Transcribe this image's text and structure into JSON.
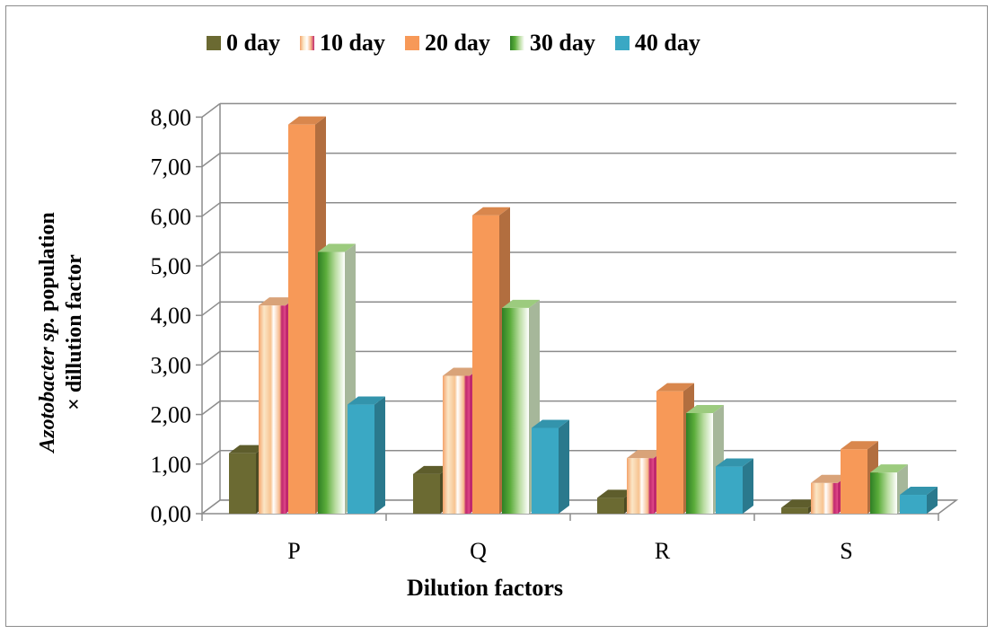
{
  "chart_data": {
    "type": "bar",
    "ylabel_line1_italic": "Azotobacter sp.",
    "ylabel_line1_rest": " population",
    "ylabel_line2": "× dillution  factor",
    "xlabel": "Dilution  factors",
    "categories": [
      "P",
      "Q",
      "R",
      "S"
    ],
    "ylim": [
      0,
      8
    ],
    "yticks": [
      "0,00",
      "1,00",
      "2,00",
      "3,00",
      "4,00",
      "5,00",
      "6,00",
      "7,00",
      "8,00"
    ],
    "grid": true,
    "legend_position": "top",
    "series": [
      {
        "name": "0 day",
        "values": [
          1.22,
          0.8,
          0.32,
          0.12
        ],
        "color": "#6b6a32"
      },
      {
        "name": "10 day",
        "values": [
          4.2,
          2.78,
          1.12,
          0.62
        ],
        "color": "#f7b98a"
      },
      {
        "name": "20 day",
        "values": [
          7.85,
          6.02,
          2.47,
          1.3
        ],
        "color": "#f79958"
      },
      {
        "name": "30 day",
        "values": [
          5.28,
          4.15,
          2.03,
          0.83
        ],
        "color": "#55a033"
      },
      {
        "name": "40 day",
        "values": [
          2.2,
          1.73,
          0.95,
          0.38
        ],
        "color": "#3aa8c4"
      }
    ]
  }
}
